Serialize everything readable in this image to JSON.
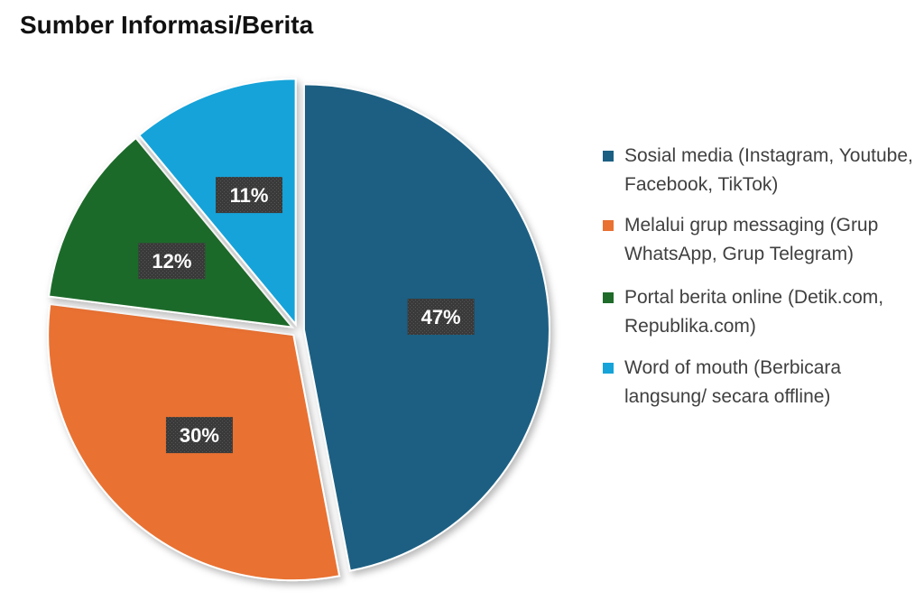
{
  "chart_data": {
    "type": "pie",
    "title": "Sumber Informasi/Berita",
    "slices": [
      {
        "name": "Sosial media (Instagram, Youtube, Facebook, TikTok)",
        "value": 47,
        "label": "47%",
        "color": "#1B5F82"
      },
      {
        "name": "Melalui grup messaging (Grup WhatsApp, Grup Telegram)",
        "value": 30,
        "label": "30%",
        "color": "#E97132"
      },
      {
        "name": "Portal berita online (Detik.com, Republika.com)",
        "value": 12,
        "label": "12%",
        "color": "#1E6B2A"
      },
      {
        "name": "Word of mouth (Berbicara langsung/ secara offline)",
        "value": 11,
        "label": "11%",
        "color": "#16A3D9"
      }
    ],
    "legend_position": "right"
  }
}
